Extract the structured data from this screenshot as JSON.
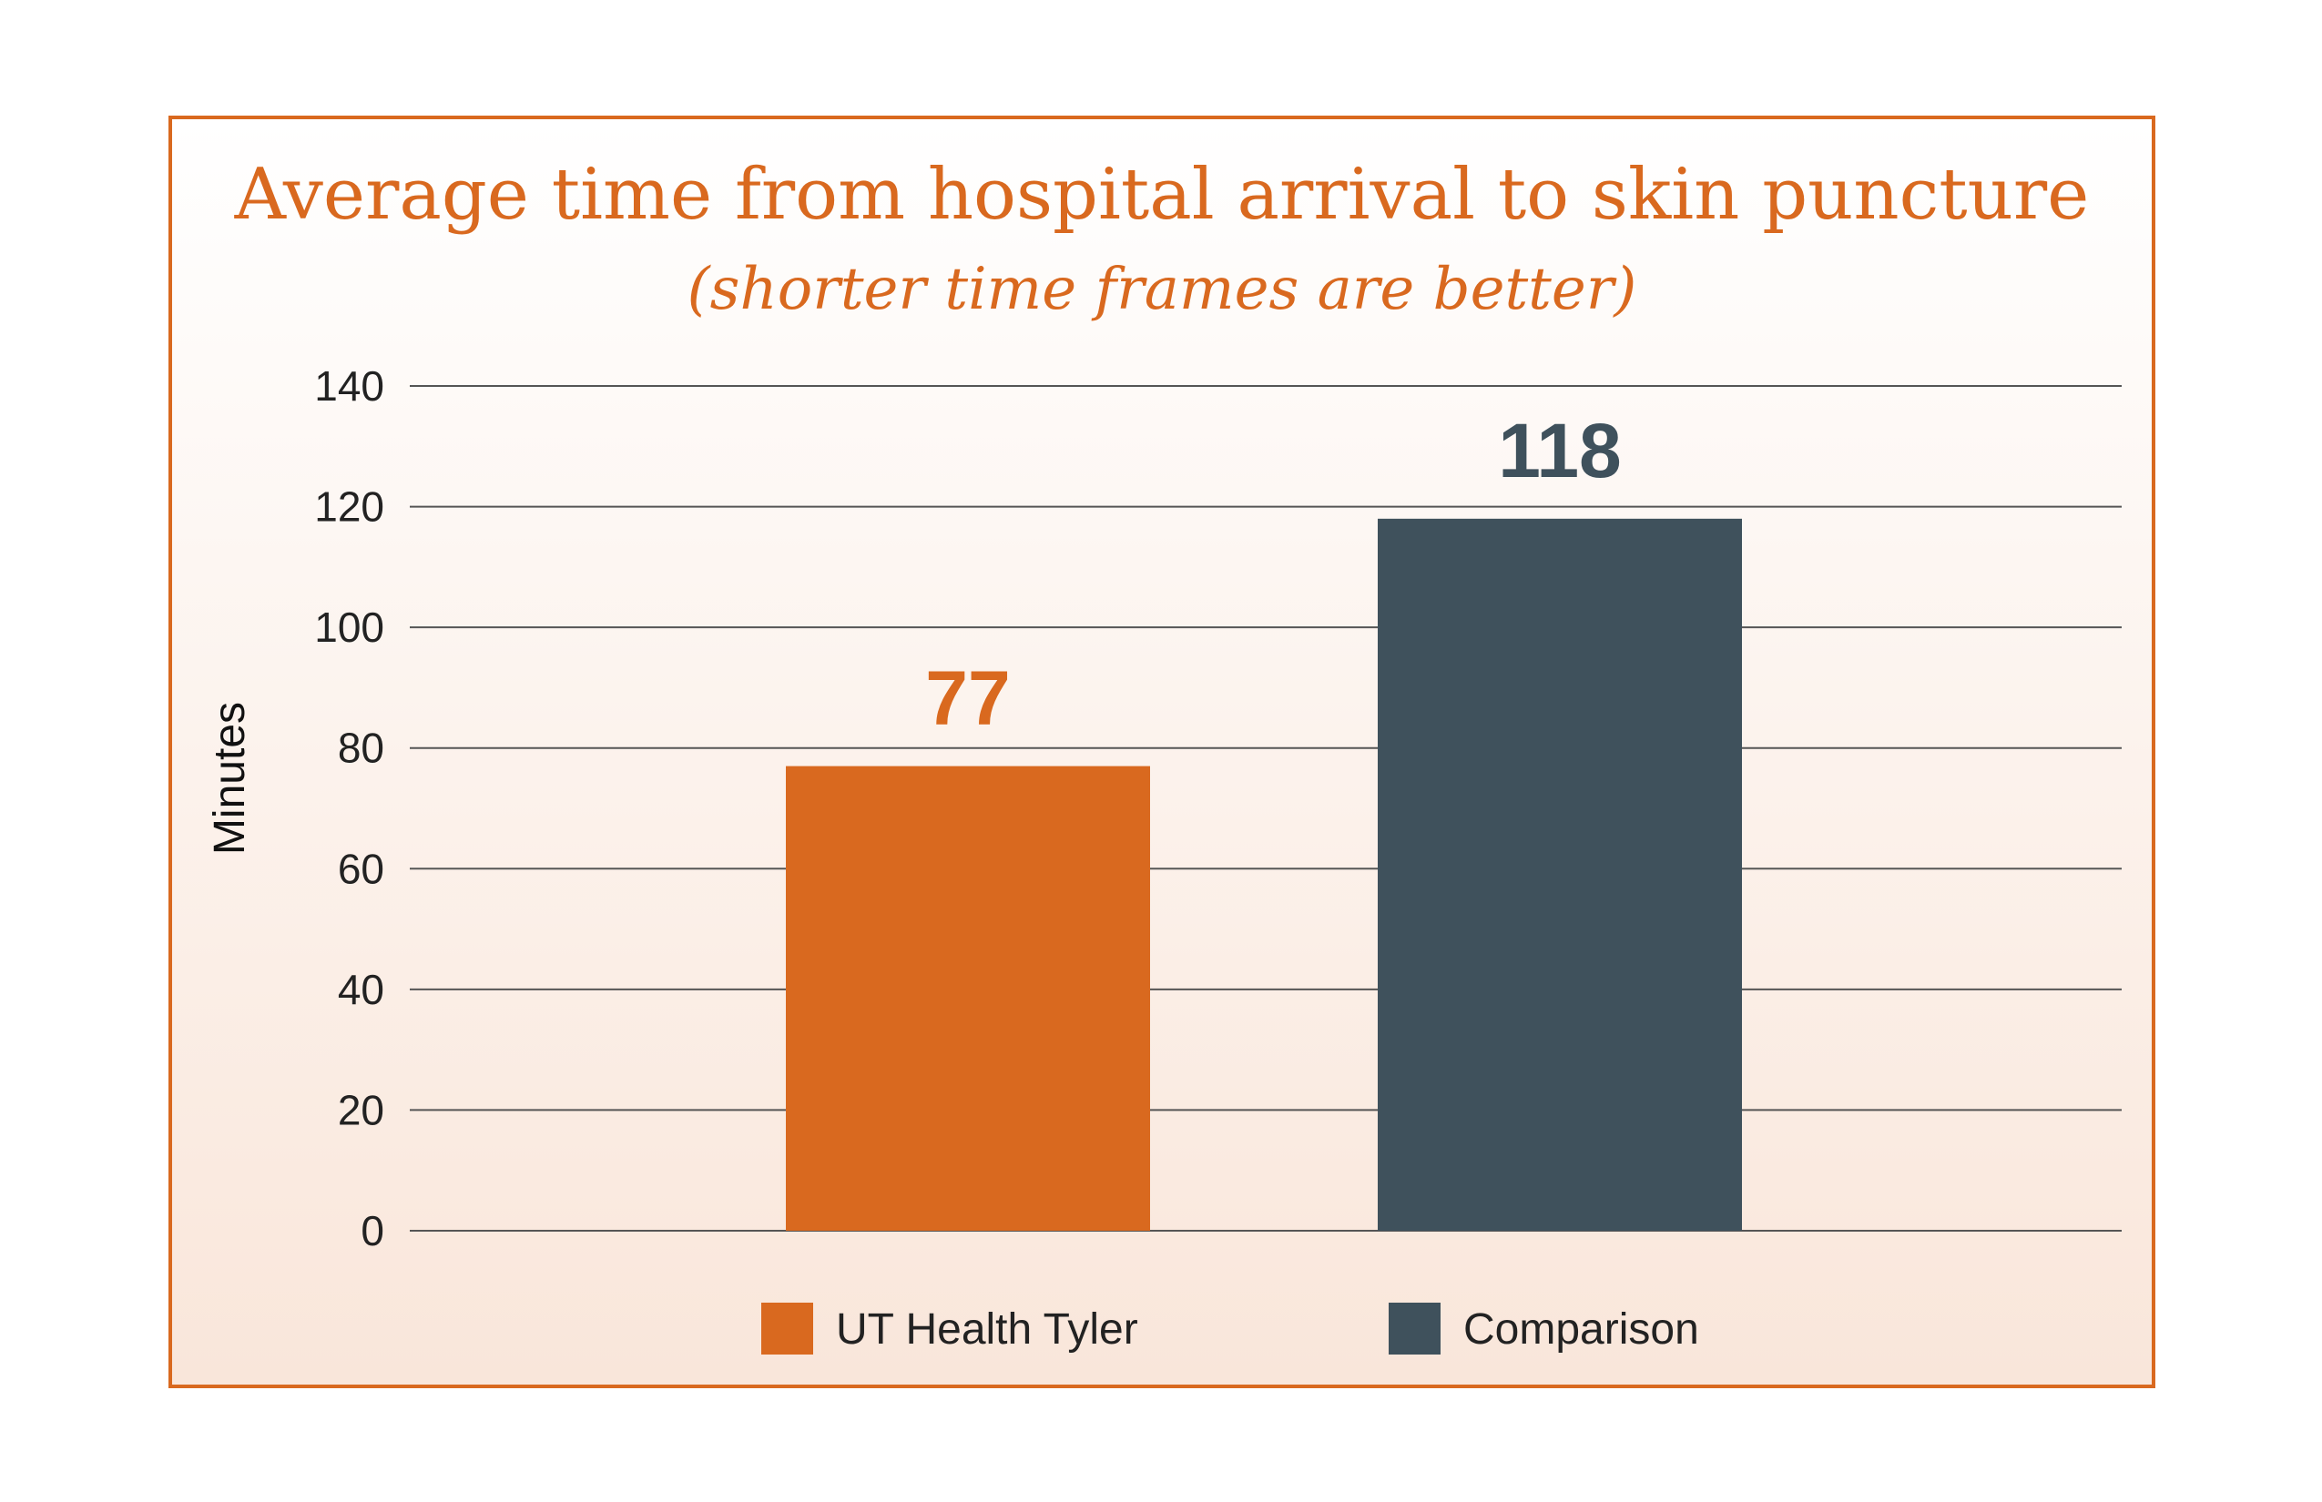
{
  "chart_data": {
    "type": "bar",
    "title": "Average time from hospital arrival to skin puncture",
    "subtitle": "(shorter time frames are better)",
    "ylabel": "Minutes",
    "xlabel": "",
    "ylim": [
      0,
      140
    ],
    "yticks": [
      0,
      20,
      40,
      60,
      80,
      100,
      120,
      140
    ],
    "grid": true,
    "legend_position": "bottom",
    "categories": [
      "UT Health Tyler",
      "Comparison"
    ],
    "values": [
      77,
      118
    ],
    "data_labels": [
      "77",
      "118"
    ],
    "colors": [
      "#d9691f",
      "#3f515c"
    ]
  }
}
